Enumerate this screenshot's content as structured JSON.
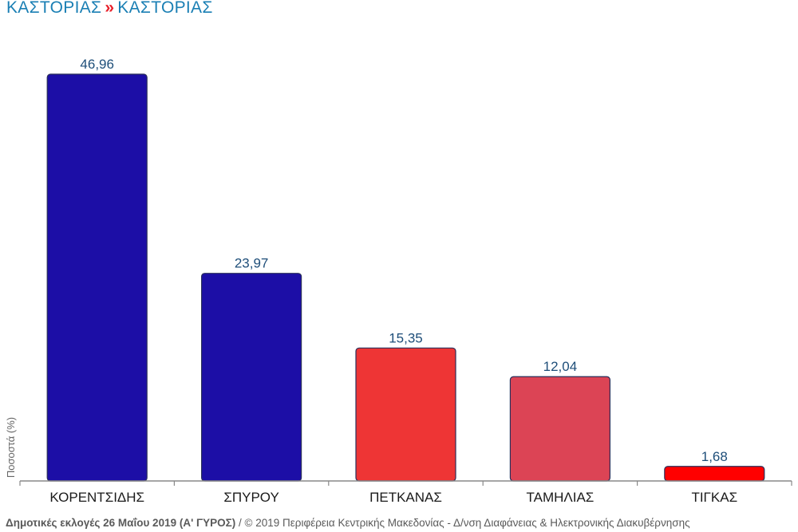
{
  "header": {
    "region": "ΚΑΣΤΟΡΙΑΣ",
    "separator": "»",
    "municipality": "ΚΑΣΤΟΡΙΑΣ"
  },
  "footer": {
    "election": "Δημοτικές εκλογές 26 Μαΐου 2019 (Α' ΓΥΡΟΣ)",
    "credit": " / © 2019 Περιφέρεια Κεντρικής Μακεδονίας - Δ/νση Διαφάνειας & Ηλεκτρονικής Διακυβέρνησης"
  },
  "colors": {
    "header_text": "#1a7fb4",
    "separator": "#e8202a",
    "value_label": "#1e4e79",
    "axis": "#888888"
  },
  "chart_data": {
    "type": "bar",
    "ylabel": "Ποσοστά (%)",
    "xlabel": "",
    "ylim": [
      0,
      50
    ],
    "grid": false,
    "categories": [
      "ΚΟΡΕΝΤΣΙΔΗΣ",
      "ΣΠΥΡΟΥ",
      "ΠΕΤΚΑΝΑΣ",
      "ΤΑΜΗΛΙΑΣ",
      "ΤΙΓΚΑΣ"
    ],
    "values": [
      46.96,
      23.97,
      15.35,
      12.04,
      1.68
    ],
    "labels": [
      "46,96",
      "23,97",
      "15,35",
      "12,04",
      "1,68"
    ],
    "bar_colors": [
      "#1c0ea6",
      "#1c0ea6",
      "#ee3535",
      "#dc4455",
      "#ff0000"
    ]
  }
}
